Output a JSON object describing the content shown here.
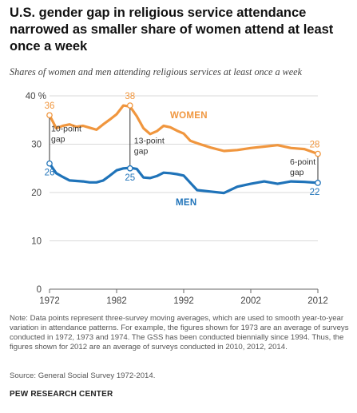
{
  "title": "U.S. gender gap in religious service attendance narrowed as smaller share of women attend at least once a week",
  "subtitle": "Shares of women and men attending religious services at least once a week",
  "note": "Note: Data points represent three-survey moving averages, which are used to smooth year-to-year variation in attendance patterns. For example, the figures shown for 1973 are an average of surveys conducted in 1972, 1973 and 1974. The GSS has been conducted biennially since 1994. Thus, the figures shown for 2012 are an average of surveys conducted in 2010, 2012, 2014.",
  "source": "Source: General Social Survey 1972-2014.",
  "footer": "PEW RESEARCH CENTER",
  "colors": {
    "women": "#F0963E",
    "men": "#1F73B9",
    "grid": "#d9d9d9",
    "axis": "#666666"
  },
  "chart_data": {
    "type": "line",
    "xlim": [
      1972,
      2012
    ],
    "ylim": [
      0,
      40
    ],
    "x_ticks": [
      "1972",
      "1982",
      "1992",
      "2002",
      "2012"
    ],
    "y_ticks": [
      "0",
      "10",
      "20",
      "30",
      "40 %"
    ],
    "grid": true,
    "series": [
      {
        "name": "WOMEN",
        "x": [
          1972,
          1973,
          1974,
          1975,
          1976,
          1977,
          1978,
          1979,
          1980,
          1981,
          1982,
          1983,
          1984,
          1985,
          1986,
          1987,
          1988,
          1989,
          1990,
          1991,
          1992,
          1993,
          1994,
          1996,
          1998,
          2000,
          2002,
          2004,
          2006,
          2008,
          2010,
          2012
        ],
        "y": [
          36,
          33.3,
          33.8,
          34.1,
          33.6,
          33.8,
          33.4,
          33.0,
          34.1,
          35.1,
          36.2,
          38,
          37.8,
          35.8,
          33.3,
          32.1,
          32.7,
          33.8,
          33.5,
          32.8,
          32.2,
          30.7,
          30.2,
          29.3,
          28.6,
          28.8,
          29.2,
          29.5,
          29.8,
          29.2,
          29.0,
          28
        ]
      },
      {
        "name": "MEN",
        "x": [
          1972,
          1973,
          1974,
          1975,
          1976,
          1977,
          1978,
          1979,
          1980,
          1981,
          1982,
          1983,
          1984,
          1985,
          1986,
          1987,
          1988,
          1989,
          1990,
          1991,
          1992,
          1993,
          1994,
          1996,
          1998,
          2000,
          2002,
          2004,
          2006,
          2008,
          2010,
          2012
        ],
        "y": [
          26,
          24.0,
          23.2,
          22.5,
          22.4,
          22.3,
          22.1,
          22.1,
          22.5,
          23.5,
          24.6,
          25,
          25.1,
          24.9,
          23.1,
          23.0,
          23.4,
          24.1,
          24.0,
          23.8,
          23.5,
          22.0,
          20.5,
          20.2,
          19.9,
          21.2,
          21.8,
          22.3,
          21.8,
          22.3,
          22.2,
          22
        ]
      }
    ],
    "point_labels": [
      {
        "series": "WOMEN",
        "x": 1972,
        "y": 36,
        "text": "36"
      },
      {
        "series": "WOMEN",
        "x": 1984,
        "y": 38,
        "text": "38"
      },
      {
        "series": "WOMEN",
        "x": 2012,
        "y": 28,
        "text": "28"
      },
      {
        "series": "MEN",
        "x": 1972,
        "y": 26,
        "text": "26"
      },
      {
        "series": "MEN",
        "x": 1984,
        "y": 25,
        "text": "25"
      },
      {
        "series": "MEN",
        "x": 2012,
        "y": 22,
        "text": "22"
      }
    ],
    "annotations": [
      {
        "x": 1972,
        "lines": [
          "10-point",
          "gap"
        ]
      },
      {
        "x": 1984,
        "lines": [
          "13-point",
          "gap"
        ]
      },
      {
        "x": 2012,
        "lines": [
          "6-point",
          "gap"
        ]
      }
    ]
  }
}
